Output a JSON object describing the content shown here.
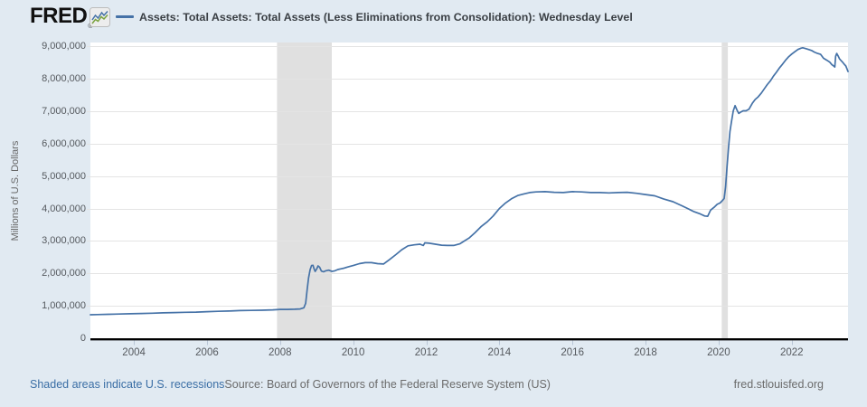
{
  "header": {
    "logo": "FRED",
    "registered": "®",
    "legend_label": "Assets: Total Assets: Total Assets (Less Eliminations from Consolidation): Wednesday Level"
  },
  "footer": {
    "shaded_note": "Shaded areas indicate U.S. recessions",
    "source": "Source: Board of Governors of the Federal Reserve System (US)",
    "site": "fred.stlouisfed.org"
  },
  "colors": {
    "page_bg": "#e1eaf2",
    "plot_bg": "#ffffff",
    "line": "#4572a7",
    "grid": "#e4e4e4",
    "recession_band": "#e0e0e0",
    "axis_line": "#000000",
    "x_tick_mark": "#b9c6d6",
    "tick_label": "#55595e",
    "footer_link": "#3a6ea5",
    "footer_text": "#6b6b6b",
    "legend_text": "#3a3f44",
    "logo_green": "#7aa23f"
  },
  "chart_data": {
    "type": "line",
    "title": "Assets: Total Assets: Total Assets (Less Eliminations from Consolidation): Wednesday Level",
    "xlabel": "",
    "ylabel": "Millions of U.S. Dollars",
    "x_range": [
      2002.81,
      2023.54
    ],
    "y_range": [
      0,
      9116000
    ],
    "x_ticks": [
      2004,
      2006,
      2008,
      2010,
      2012,
      2014,
      2016,
      2018,
      2020,
      2022
    ],
    "y_ticks": [
      0,
      1000000,
      2000000,
      3000000,
      4000000,
      5000000,
      6000000,
      7000000,
      8000000,
      9000000
    ],
    "grid": "horizontal-only",
    "legend_position": "top",
    "recession_bands": [
      [
        2007.917,
        2009.417
      ],
      [
        2020.083,
        2020.25
      ]
    ],
    "series": [
      {
        "name": "Assets: Total Assets: Total Assets (Less Eliminations from Consolidation): Wednesday Level",
        "color": "#4572a7",
        "units": "Millions of U.S. Dollars",
        "points": [
          [
            2002.81,
            724000
          ],
          [
            2003.0,
            730000
          ],
          [
            2003.3,
            738000
          ],
          [
            2003.6,
            746000
          ],
          [
            2003.9,
            756000
          ],
          [
            2004.2,
            764000
          ],
          [
            2004.5,
            772000
          ],
          [
            2004.8,
            782000
          ],
          [
            2005.1,
            792000
          ],
          [
            2005.4,
            799000
          ],
          [
            2005.7,
            806000
          ],
          [
            2006.0,
            820000
          ],
          [
            2006.3,
            830000
          ],
          [
            2006.6,
            840000
          ],
          [
            2006.9,
            852000
          ],
          [
            2007.2,
            858000
          ],
          [
            2007.5,
            864000
          ],
          [
            2007.8,
            875000
          ],
          [
            2008.0,
            888000
          ],
          [
            2008.2,
            890000
          ],
          [
            2008.4,
            896000
          ],
          [
            2008.55,
            903000
          ],
          [
            2008.65,
            940000
          ],
          [
            2008.7,
            1080000
          ],
          [
            2008.74,
            1490000
          ],
          [
            2008.78,
            1860000
          ],
          [
            2008.82,
            2110000
          ],
          [
            2008.86,
            2240000
          ],
          [
            2008.9,
            2250000
          ],
          [
            2008.93,
            2140000
          ],
          [
            2008.96,
            2060000
          ],
          [
            2009.0,
            2130000
          ],
          [
            2009.04,
            2230000
          ],
          [
            2009.08,
            2190000
          ],
          [
            2009.13,
            2070000
          ],
          [
            2009.19,
            2050000
          ],
          [
            2009.25,
            2080000
          ],
          [
            2009.33,
            2100000
          ],
          [
            2009.42,
            2060000
          ],
          [
            2009.5,
            2080000
          ],
          [
            2009.58,
            2120000
          ],
          [
            2009.67,
            2140000
          ],
          [
            2009.75,
            2160000
          ],
          [
            2009.83,
            2190000
          ],
          [
            2009.92,
            2220000
          ],
          [
            2010.0,
            2240000
          ],
          [
            2010.17,
            2300000
          ],
          [
            2010.33,
            2330000
          ],
          [
            2010.5,
            2330000
          ],
          [
            2010.67,
            2300000
          ],
          [
            2010.83,
            2290000
          ],
          [
            2011.0,
            2430000
          ],
          [
            2011.17,
            2580000
          ],
          [
            2011.33,
            2730000
          ],
          [
            2011.5,
            2850000
          ],
          [
            2011.67,
            2880000
          ],
          [
            2011.83,
            2900000
          ],
          [
            2011.92,
            2860000
          ],
          [
            2011.96,
            2940000
          ],
          [
            2012.08,
            2930000
          ],
          [
            2012.25,
            2900000
          ],
          [
            2012.42,
            2870000
          ],
          [
            2012.58,
            2860000
          ],
          [
            2012.75,
            2860000
          ],
          [
            2012.92,
            2910000
          ],
          [
            2013.0,
            2970000
          ],
          [
            2013.17,
            3090000
          ],
          [
            2013.33,
            3250000
          ],
          [
            2013.5,
            3440000
          ],
          [
            2013.67,
            3590000
          ],
          [
            2013.83,
            3770000
          ],
          [
            2014.0,
            4000000
          ],
          [
            2014.17,
            4170000
          ],
          [
            2014.33,
            4300000
          ],
          [
            2014.5,
            4400000
          ],
          [
            2014.67,
            4450000
          ],
          [
            2014.83,
            4490000
          ],
          [
            2015.0,
            4510000
          ],
          [
            2015.25,
            4520000
          ],
          [
            2015.5,
            4500000
          ],
          [
            2015.75,
            4490000
          ],
          [
            2016.0,
            4520000
          ],
          [
            2016.25,
            4510000
          ],
          [
            2016.5,
            4490000
          ],
          [
            2016.75,
            4490000
          ],
          [
            2017.0,
            4480000
          ],
          [
            2017.25,
            4490000
          ],
          [
            2017.5,
            4500000
          ],
          [
            2017.75,
            4470000
          ],
          [
            2018.0,
            4430000
          ],
          [
            2018.25,
            4390000
          ],
          [
            2018.5,
            4290000
          ],
          [
            2018.75,
            4210000
          ],
          [
            2019.0,
            4080000
          ],
          [
            2019.17,
            3990000
          ],
          [
            2019.33,
            3900000
          ],
          [
            2019.5,
            3830000
          ],
          [
            2019.62,
            3770000
          ],
          [
            2019.7,
            3760000
          ],
          [
            2019.78,
            3950000
          ],
          [
            2019.88,
            4040000
          ],
          [
            2019.96,
            4130000
          ],
          [
            2020.04,
            4170000
          ],
          [
            2020.1,
            4240000
          ],
          [
            2020.15,
            4310000
          ],
          [
            2020.19,
            4670000
          ],
          [
            2020.23,
            5300000
          ],
          [
            2020.27,
            5860000
          ],
          [
            2020.31,
            6370000
          ],
          [
            2020.35,
            6660000
          ],
          [
            2020.4,
            7010000
          ],
          [
            2020.45,
            7170000
          ],
          [
            2020.5,
            7040000
          ],
          [
            2020.55,
            6930000
          ],
          [
            2020.6,
            6970000
          ],
          [
            2020.67,
            7010000
          ],
          [
            2020.75,
            7010000
          ],
          [
            2020.83,
            7060000
          ],
          [
            2020.92,
            7240000
          ],
          [
            2021.0,
            7360000
          ],
          [
            2021.08,
            7440000
          ],
          [
            2021.17,
            7560000
          ],
          [
            2021.25,
            7690000
          ],
          [
            2021.33,
            7820000
          ],
          [
            2021.42,
            7940000
          ],
          [
            2021.5,
            8080000
          ],
          [
            2021.58,
            8200000
          ],
          [
            2021.67,
            8340000
          ],
          [
            2021.75,
            8450000
          ],
          [
            2021.83,
            8570000
          ],
          [
            2021.92,
            8680000
          ],
          [
            2022.0,
            8760000
          ],
          [
            2022.08,
            8830000
          ],
          [
            2022.17,
            8900000
          ],
          [
            2022.25,
            8940000
          ],
          [
            2022.3,
            8955000
          ],
          [
            2022.38,
            8930000
          ],
          [
            2022.46,
            8900000
          ],
          [
            2022.54,
            8870000
          ],
          [
            2022.62,
            8820000
          ],
          [
            2022.71,
            8780000
          ],
          [
            2022.79,
            8750000
          ],
          [
            2022.87,
            8630000
          ],
          [
            2022.96,
            8570000
          ],
          [
            2023.04,
            8510000
          ],
          [
            2023.1,
            8430000
          ],
          [
            2023.15,
            8390000
          ],
          [
            2023.18,
            8360000
          ],
          [
            2023.2,
            8690000
          ],
          [
            2023.23,
            8780000
          ],
          [
            2023.27,
            8700000
          ],
          [
            2023.31,
            8610000
          ],
          [
            2023.35,
            8560000
          ],
          [
            2023.4,
            8500000
          ],
          [
            2023.44,
            8440000
          ],
          [
            2023.48,
            8390000
          ],
          [
            2023.51,
            8310000
          ],
          [
            2023.54,
            8220000
          ]
        ]
      }
    ]
  }
}
